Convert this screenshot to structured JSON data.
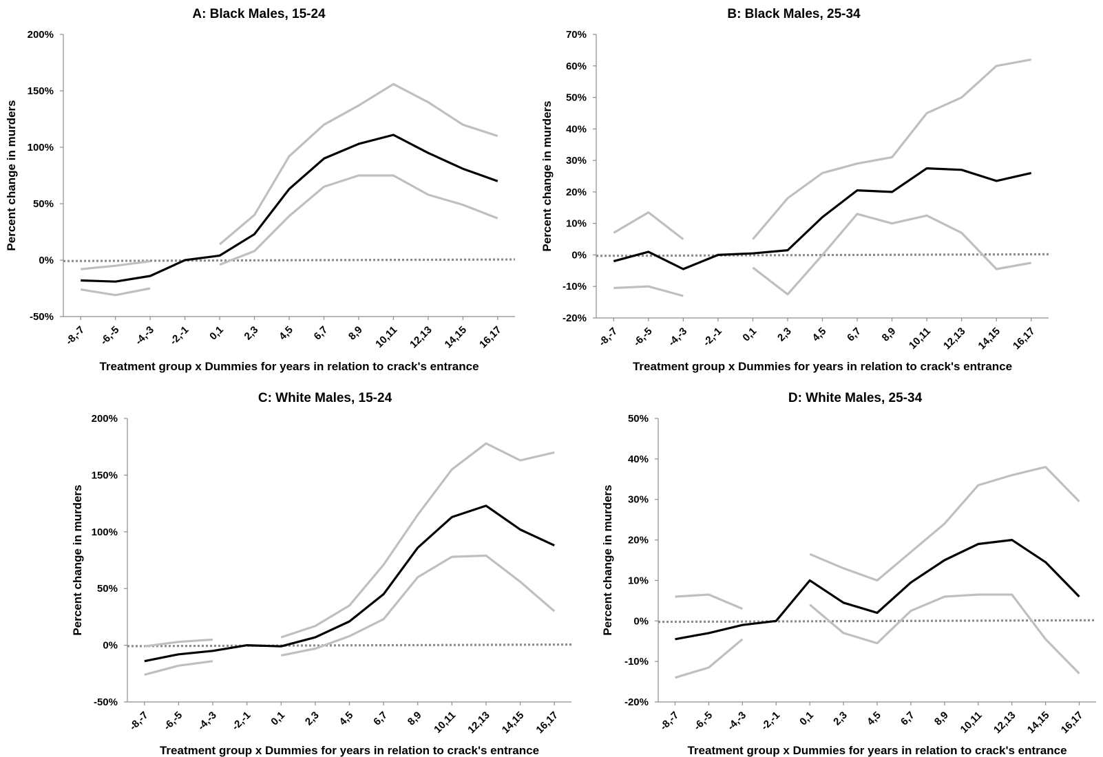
{
  "chart_data": [
    {
      "type": "line",
      "title": "A: Black Males, 15-24",
      "xlabel": "Treatment group x Dummies for years in relation to crack's entrance",
      "ylabel": "Percent change in murders",
      "categories": [
        "-8,-7",
        "-6,-5",
        "-4,-3",
        "-2,-1",
        "0,1",
        "2,3",
        "4,5",
        "6,7",
        "8,9",
        "10,11",
        "12,13",
        "14,15",
        "16,17"
      ],
      "yticks": [
        "-50%",
        "0%",
        "50%",
        "100%",
        "150%",
        "200%"
      ],
      "ylim": [
        -50,
        200
      ],
      "series": [
        {
          "role": "estimate",
          "values": [
            -18,
            -19,
            -14,
            0,
            4,
            23,
            63,
            90,
            103,
            111,
            95,
            81,
            70
          ]
        },
        {
          "role": "upper",
          "values": [
            -8,
            -5,
            -1,
            null,
            14,
            40,
            92,
            120,
            137,
            156,
            140,
            120,
            110
          ]
        },
        {
          "role": "lower",
          "values": [
            -26,
            -31,
            -25,
            null,
            -4,
            8,
            39,
            65,
            75,
            75,
            58,
            49,
            37
          ]
        },
        {
          "role": "zero",
          "style": "dotted",
          "values": [
            0,
            0,
            0,
            0,
            0,
            0,
            0,
            0,
            0,
            0,
            0,
            0,
            0
          ]
        }
      ]
    },
    {
      "type": "line",
      "title": "B: Black Males, 25-34",
      "xlabel": "Treatment group x Dummies for years in relation to crack's entrance",
      "ylabel": "Percent change in murders",
      "categories": [
        "-8,-7",
        "-6,-5",
        "-4,-3",
        "-2,-1",
        "0,1",
        "2,3",
        "4,5",
        "6,7",
        "8,9",
        "10,11",
        "12,13",
        "14,15",
        "16,17"
      ],
      "yticks": [
        "-20%",
        "-10%",
        "0%",
        "10%",
        "20%",
        "30%",
        "40%",
        "50%",
        "60%",
        "70%"
      ],
      "ylim": [
        -20,
        70
      ],
      "series": [
        {
          "role": "estimate",
          "values": [
            -2,
            1,
            -4.5,
            0,
            0.5,
            1.5,
            12,
            20.5,
            20,
            27.5,
            27,
            23.5,
            26
          ]
        },
        {
          "role": "upper",
          "values": [
            7,
            13.5,
            5,
            null,
            5,
            18,
            26,
            29,
            31,
            45,
            50,
            60,
            62
          ]
        },
        {
          "role": "lower",
          "values": [
            -10.5,
            -10,
            -13,
            null,
            -4,
            -12.5,
            0,
            13,
            10,
            12.5,
            7,
            -4.5,
            -2.5
          ]
        },
        {
          "role": "zero",
          "style": "dotted",
          "values": [
            0,
            0,
            0,
            0,
            0,
            0,
            0,
            0,
            0,
            0,
            0,
            0,
            0
          ]
        }
      ]
    },
    {
      "type": "line",
      "title": "C: White Males, 15-24",
      "xlabel": "Treatment group x Dummies for years in relation to crack's entrance",
      "ylabel": "Percent change in murders",
      "categories": [
        "-8,-7",
        "-6,-5",
        "-4,-3",
        "-2,-1",
        "0,1",
        "2,3",
        "4,5",
        "6,7",
        "8,9",
        "10,11",
        "12,13",
        "14,15",
        "16,17"
      ],
      "yticks": [
        "-50%",
        "0%",
        "50%",
        "100%",
        "150%",
        "200%"
      ],
      "ylim": [
        -50,
        200
      ],
      "series": [
        {
          "role": "estimate",
          "values": [
            -14,
            -8,
            -5,
            0,
            -1,
            7,
            21,
            45,
            86,
            113,
            123,
            102,
            88
          ]
        },
        {
          "role": "upper",
          "values": [
            -1,
            3,
            5,
            null,
            7,
            17,
            35,
            71,
            115,
            155,
            178,
            163,
            170
          ]
        },
        {
          "role": "lower",
          "values": [
            -26,
            -18,
            -14,
            null,
            -9,
            -3,
            8,
            23,
            60,
            78,
            79,
            56,
            30
          ]
        },
        {
          "role": "zero",
          "style": "dotted",
          "values": [
            0,
            0,
            0,
            0,
            0,
            0,
            0,
            0,
            0,
            0,
            0,
            0,
            0
          ]
        }
      ]
    },
    {
      "type": "line",
      "title": "D: White Males, 25-34",
      "xlabel": "Treatment group x Dummies for years in relation to crack's entrance",
      "ylabel": "Percent change in murders",
      "categories": [
        "-8,-7",
        "-6,-5",
        "-4,-3",
        "-2,-1",
        "0,1",
        "2,3",
        "4,5",
        "6,7",
        "8,9",
        "10,11",
        "12,13",
        "14,15",
        "16,17"
      ],
      "yticks": [
        "-20%",
        "-10%",
        "0%",
        "10%",
        "20%",
        "30%",
        "40%",
        "50%"
      ],
      "ylim": [
        -20,
        50
      ],
      "series": [
        {
          "role": "estimate",
          "values": [
            -4.5,
            -3,
            -1,
            0,
            10,
            4.5,
            2,
            9.5,
            15,
            19,
            20,
            14.5,
            6
          ]
        },
        {
          "role": "upper",
          "values": [
            6,
            6.5,
            3,
            null,
            16.5,
            13,
            10,
            17,
            24,
            33.5,
            36,
            38,
            29.5
          ]
        },
        {
          "role": "lower",
          "values": [
            -14,
            -11.5,
            -4.5,
            null,
            4,
            -3,
            -5.5,
            2.5,
            6,
            6.5,
            6.5,
            -4.5,
            -13
          ]
        },
        {
          "role": "zero",
          "style": "dotted",
          "values": [
            0,
            0,
            0,
            0,
            0,
            0,
            0,
            0,
            0,
            0,
            0,
            0,
            0
          ]
        }
      ]
    }
  ],
  "colors": {
    "estimate": "#000000",
    "confidence_band": "#bfbfbf",
    "zero_line": "#8c8c8c",
    "axis": "#8c8c8c"
  }
}
